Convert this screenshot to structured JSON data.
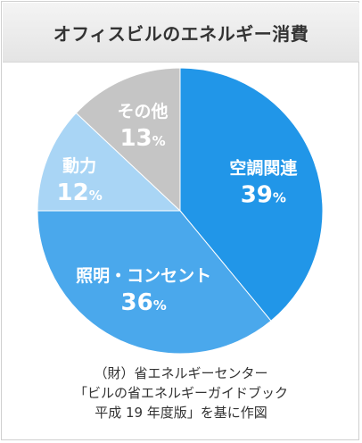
{
  "title": "オフィスビルのエネルギー消費",
  "chart_data": {
    "type": "pie",
    "title": "オフィスビルのエネルギー消費",
    "slices": [
      {
        "label": "空調関連",
        "value": 39,
        "value_label": "39",
        "unit": "%",
        "color": "#2196e8",
        "label_color": "#ffffff"
      },
      {
        "label": "照明・コンセント",
        "value": 36,
        "value_label": "36",
        "unit": "%",
        "color": "#4aa8ec",
        "label_color": "#ffffff"
      },
      {
        "label": "動力",
        "value": 12,
        "value_label": "12",
        "unit": "%",
        "color": "#a9d5f5",
        "label_color": "#ffffff"
      },
      {
        "label": "その他",
        "value": 13,
        "value_label": "13",
        "unit": "%",
        "color": "#c5c5c5",
        "label_color": "#ffffff"
      }
    ]
  },
  "caption": [
    "（財）省エネルギーセンター",
    "「ビルの省エネルギーガイドブック",
    "平成 19 年度版」を基に作図"
  ]
}
